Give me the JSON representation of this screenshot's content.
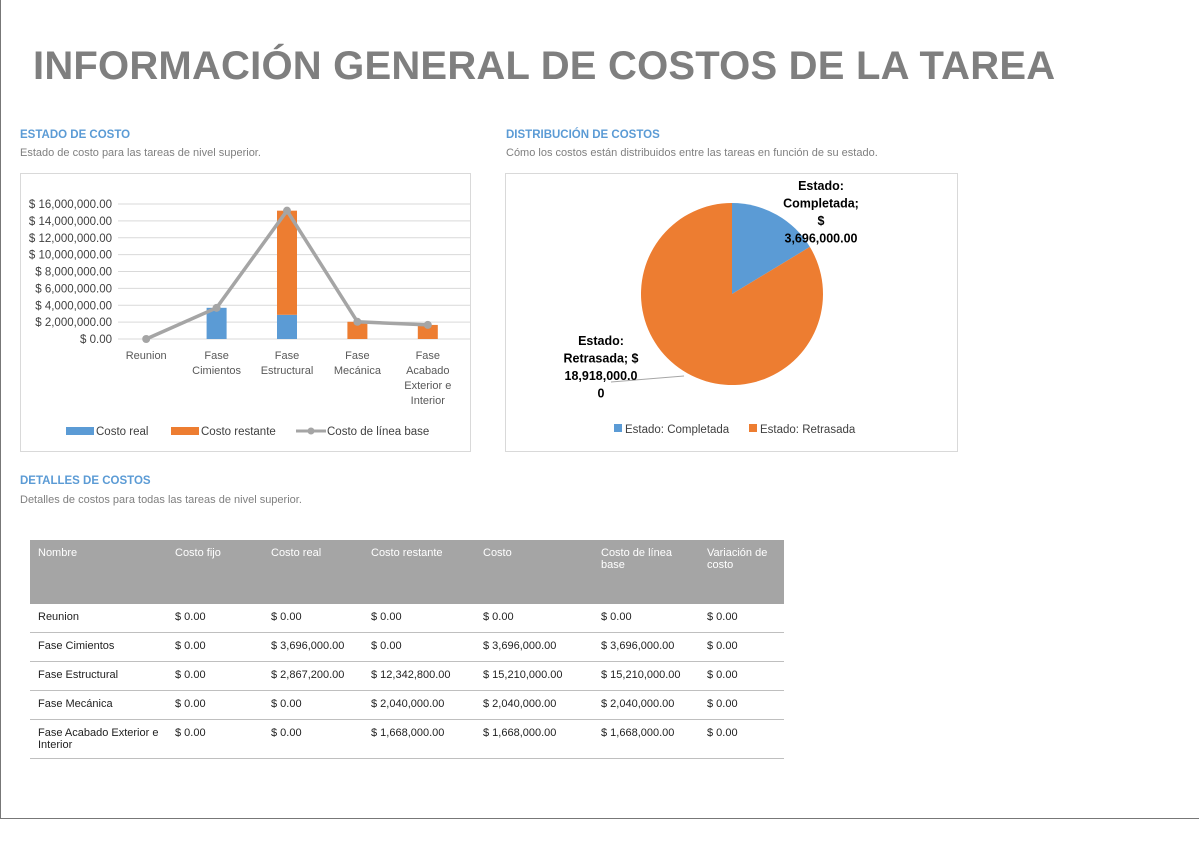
{
  "title": "INFORMACIÓN GENERAL DE COSTOS DE LA TAREA",
  "estado": {
    "heading": "ESTADO DE COSTO",
    "subtitle": "Estado de costo para las tareas de nivel superior."
  },
  "distribucion": {
    "heading": "DISTRIBUCIÓN DE COSTOS",
    "subtitle": "Cómo los costos están distribuidos entre las tareas en función de su estado."
  },
  "detalles": {
    "heading": "DETALLES DE COSTOS",
    "subtitle": "Detalles de costos para todas las tareas de nivel superior."
  },
  "chart_data": [
    {
      "type": "bar",
      "stacked": true,
      "categories": [
        "Reunion",
        "Fase Cimientos",
        "Fase Estructural",
        "Fase Mecánica",
        "Fase Acabado Exterior e Interior"
      ],
      "series": [
        {
          "name": "Costo real",
          "kind": "bar",
          "color": "#5b9bd5",
          "values": [
            0,
            3696000,
            2867200,
            0,
            0
          ]
        },
        {
          "name": "Costo restante",
          "kind": "bar",
          "color": "#ed7d31",
          "values": [
            0,
            0,
            12342800,
            2040000,
            1668000
          ]
        },
        {
          "name": "Costo de línea base",
          "kind": "line",
          "color": "#a5a5a5",
          "values": [
            0,
            3696000,
            15210000,
            2040000,
            1668000
          ]
        }
      ],
      "yticks": [
        "$ 0.00",
        "$ 2,000,000.00",
        "$ 4,000,000.00",
        "$ 6,000,000.00",
        "$ 8,000,000.00",
        "$ 10,000,000.00",
        "$ 12,000,000.00",
        "$ 14,000,000.00",
        "$ 16,000,000.00"
      ],
      "ylim": [
        0,
        16000000
      ],
      "grid": true,
      "legend": "bottom"
    },
    {
      "type": "pie",
      "slices": [
        {
          "name": "Estado: Completada",
          "value": 3696000,
          "color": "#5b9bd5",
          "label": [
            "Estado:",
            "Completada;",
            "$",
            "3,696,000.00"
          ]
        },
        {
          "name": "Estado: Retrasada",
          "value": 18918000,
          "color": "#ed7d31",
          "label": [
            "Estado:",
            "Retrasada; $",
            "18,918,000.0",
            "0"
          ]
        }
      ],
      "legend": "bottom"
    }
  ],
  "table": {
    "headers": [
      "Nombre",
      "Costo fijo",
      "Costo real",
      "Costo restante",
      "Costo",
      "Costo de línea base",
      "Variación de costo"
    ],
    "rows": [
      [
        "Reunion",
        "$ 0.00",
        "$ 0.00",
        "$ 0.00",
        "$ 0.00",
        "$ 0.00",
        "$ 0.00"
      ],
      [
        "Fase Cimientos",
        "$ 0.00",
        "$ 3,696,000.00",
        "$ 0.00",
        "$ 3,696,000.00",
        "$ 3,696,000.00",
        "$ 0.00"
      ],
      [
        "Fase Estructural",
        "$ 0.00",
        "$ 2,867,200.00",
        "$ 12,342,800.00",
        "$ 15,210,000.00",
        "$ 15,210,000.00",
        "$ 0.00"
      ],
      [
        "Fase Mecánica",
        "$ 0.00",
        "$ 0.00",
        "$ 2,040,000.00",
        "$ 2,040,000.00",
        "$ 2,040,000.00",
        "$ 0.00"
      ],
      [
        "Fase Acabado Exterior e Interior",
        "$ 0.00",
        "$ 0.00",
        "$ 1,668,000.00",
        "$ 1,668,000.00",
        "$ 1,668,000.00",
        "$ 0.00"
      ]
    ]
  }
}
